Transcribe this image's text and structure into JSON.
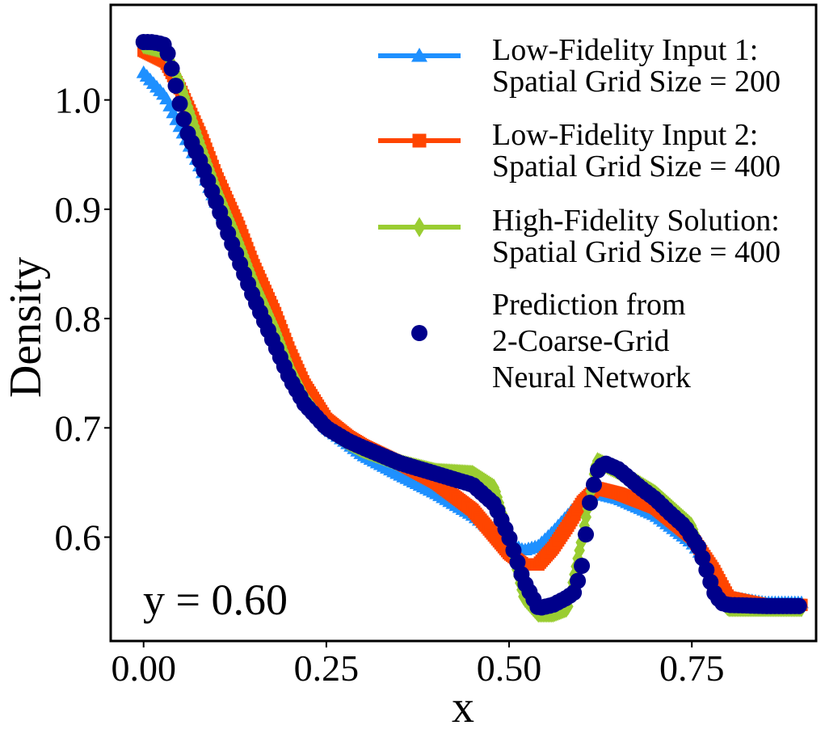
{
  "chart_data": {
    "type": "scatter",
    "title": "",
    "xlabel": "x",
    "ylabel": "Density",
    "xlim": [
      -0.045,
      0.92
    ],
    "ylim": [
      0.505,
      1.087
    ],
    "xticks": [
      0.0,
      0.25,
      0.5,
      0.75
    ],
    "xtick_labels": [
      "0.00",
      "0.25",
      "0.50",
      "0.75"
    ],
    "yticks": [
      0.6,
      0.7,
      0.8,
      0.9,
      1.0
    ],
    "ytick_labels": [
      "0.6",
      "0.7",
      "0.8",
      "0.9",
      "1.0"
    ],
    "annotation": "y = 0.60",
    "legend_position": "top-right",
    "grid": false,
    "series": [
      {
        "name_lines": [
          "Low-Fidelity Input 1:",
          "Spatial Grid Size = 200"
        ],
        "color": "#1E90FF",
        "marker": "triangle",
        "x": [
          0.0,
          0.03,
          0.05,
          0.08,
          0.1,
          0.13,
          0.15,
          0.18,
          0.2,
          0.22,
          0.25,
          0.28,
          0.3,
          0.35,
          0.4,
          0.45,
          0.5,
          0.52,
          0.54,
          0.56,
          0.58,
          0.6,
          0.62,
          0.65,
          0.7,
          0.75,
          0.78,
          0.8,
          0.85,
          0.9
        ],
        "y": [
          1.025,
          1.003,
          0.975,
          0.935,
          0.905,
          0.865,
          0.832,
          0.788,
          0.755,
          0.728,
          0.7,
          0.685,
          0.675,
          0.657,
          0.64,
          0.62,
          0.595,
          0.588,
          0.592,
          0.605,
          0.62,
          0.635,
          0.64,
          0.635,
          0.62,
          0.595,
          0.57,
          0.545,
          0.54,
          0.54
        ]
      },
      {
        "name_lines": [
          "Low-Fidelity Input 2:",
          "Spatial Grid Size = 400"
        ],
        "color": "#FF4500",
        "marker": "square",
        "x": [
          0.0,
          0.03,
          0.05,
          0.08,
          0.1,
          0.13,
          0.15,
          0.18,
          0.2,
          0.22,
          0.25,
          0.28,
          0.3,
          0.35,
          0.4,
          0.45,
          0.5,
          0.52,
          0.54,
          0.56,
          0.58,
          0.6,
          0.62,
          0.65,
          0.7,
          0.75,
          0.78,
          0.8,
          0.85,
          0.9
        ],
        "y": [
          1.045,
          1.035,
          1.01,
          0.965,
          0.93,
          0.885,
          0.85,
          0.805,
          0.77,
          0.74,
          0.708,
          0.692,
          0.684,
          0.668,
          0.65,
          0.625,
          0.585,
          0.575,
          0.575,
          0.59,
          0.61,
          0.632,
          0.645,
          0.64,
          0.627,
          0.6,
          0.57,
          0.545,
          0.538,
          0.538
        ]
      },
      {
        "name_lines": [
          "High-Fidelity Solution:",
          "Spatial Grid Size = 400"
        ],
        "color": "#9ACD32",
        "marker": "diamond",
        "x": [
          0.0,
          0.03,
          0.05,
          0.08,
          0.1,
          0.13,
          0.15,
          0.18,
          0.2,
          0.22,
          0.25,
          0.28,
          0.3,
          0.35,
          0.4,
          0.45,
          0.48,
          0.5,
          0.52,
          0.54,
          0.56,
          0.58,
          0.6,
          0.62,
          0.65,
          0.7,
          0.75,
          0.78,
          0.8,
          0.85,
          0.9
        ],
        "y": [
          1.05,
          1.045,
          1.015,
          0.955,
          0.918,
          0.87,
          0.835,
          0.79,
          0.755,
          0.728,
          0.7,
          0.687,
          0.68,
          0.668,
          0.66,
          0.658,
          0.645,
          0.6,
          0.545,
          0.53,
          0.53,
          0.535,
          0.6,
          0.67,
          0.66,
          0.64,
          0.61,
          0.55,
          0.535,
          0.535,
          0.535
        ]
      },
      {
        "name_lines": [
          "Prediction from",
          "2-Coarse-Grid",
          "Neural Network"
        ],
        "color": "#00008B",
        "marker": "circle",
        "x": [
          0.0,
          0.01,
          0.02,
          0.03,
          0.04,
          0.05,
          0.06,
          0.08,
          0.1,
          0.12,
          0.15,
          0.18,
          0.2,
          0.22,
          0.25,
          0.28,
          0.3,
          0.35,
          0.4,
          0.45,
          0.48,
          0.5,
          0.52,
          0.54,
          0.56,
          0.58,
          0.59,
          0.6,
          0.61,
          0.62,
          0.63,
          0.65,
          0.68,
          0.7,
          0.72,
          0.74,
          0.76,
          0.77,
          0.78,
          0.79,
          0.8,
          0.85,
          0.9
        ],
        "y": [
          1.053,
          1.053,
          1.052,
          1.05,
          1.025,
          0.995,
          0.97,
          0.94,
          0.905,
          0.87,
          0.82,
          0.775,
          0.745,
          0.722,
          0.7,
          0.688,
          0.682,
          0.668,
          0.658,
          0.648,
          0.63,
          0.6,
          0.56,
          0.535,
          0.538,
          0.545,
          0.55,
          0.575,
          0.63,
          0.66,
          0.668,
          0.662,
          0.645,
          0.635,
          0.622,
          0.61,
          0.59,
          0.57,
          0.55,
          0.54,
          0.538,
          0.537,
          0.537
        ]
      }
    ]
  }
}
